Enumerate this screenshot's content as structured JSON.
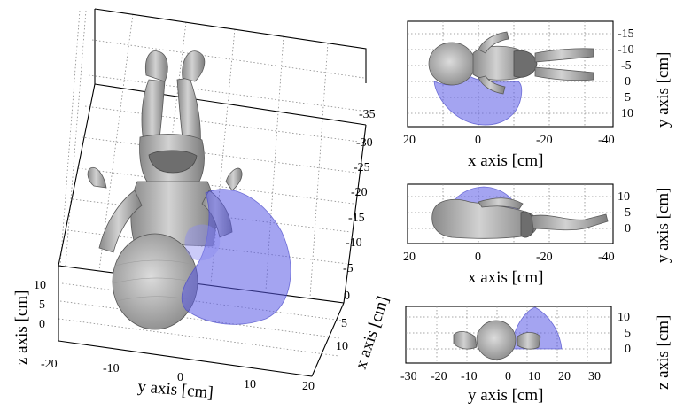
{
  "main_view": {
    "x_ticks": [
      "-35",
      "-30",
      "-25",
      "-20",
      "-15",
      "-10",
      "-5",
      "0",
      "5",
      "10"
    ],
    "y_ticks": [
      "-20",
      "-10",
      "0",
      "10",
      "20"
    ],
    "z_ticks": [
      "10",
      "5",
      "0"
    ],
    "x_label": "x axis [cm]",
    "y_label": "y axis [cm]",
    "z_label": "z axis [cm]"
  },
  "top_view": {
    "x_ticks": [
      "20",
      "0",
      "-20",
      "-40"
    ],
    "y_ticks": [
      "-15",
      "-10",
      "-5",
      "0",
      "5",
      "10"
    ],
    "x_label": "x axis [cm]",
    "y_label": "y axis [cm]"
  },
  "side_view": {
    "x_ticks": [
      "20",
      "0",
      "-20",
      "-40"
    ],
    "y_ticks": [
      "10",
      "5",
      "0"
    ],
    "x_label": "x axis [cm]",
    "y_label": "y axis [cm]"
  },
  "front_view": {
    "x_ticks": [
      "-30",
      "-20",
      "-10",
      "0",
      "10",
      "20",
      "30"
    ],
    "y_ticks": [
      "10",
      "5",
      "0"
    ],
    "x_label": "y axis [cm]",
    "y_label": "z axis [cm]"
  },
  "colors": {
    "field": "#5a5ae6",
    "body": "#b4b4b4",
    "frame": "#000000",
    "grid": "#8a8a8a"
  }
}
